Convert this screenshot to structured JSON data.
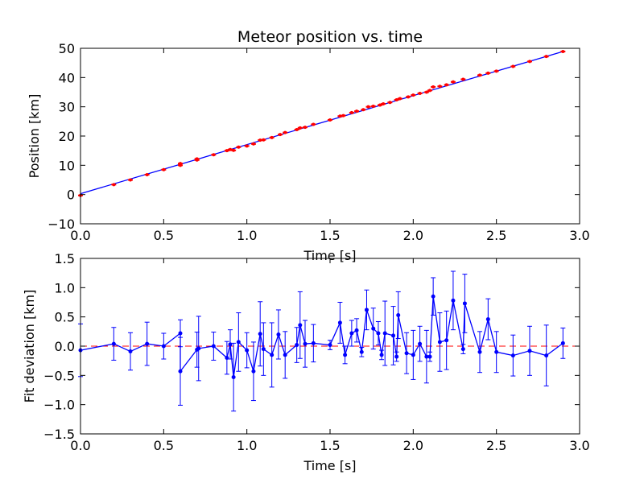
{
  "chart_data": [
    {
      "type": "scatter",
      "title": "Meteor position vs. time",
      "xlabel": "Time [s]",
      "ylabel": "Position [km]",
      "xlim": [
        0,
        3
      ],
      "ylim": [
        -10,
        50
      ],
      "xticks": [
        "0.0",
        "0.5",
        "1.0",
        "1.5",
        "2.0",
        "2.5",
        "3.0"
      ],
      "yticks": [
        "−10",
        "0",
        "10",
        "20",
        "30",
        "40",
        "50"
      ],
      "grid": false,
      "fit_line": {
        "x": [
          0,
          2.9
        ],
        "y": [
          0.3,
          48.9
        ],
        "color": "#0000ff"
      },
      "point_color": "#ff0000",
      "points": [
        {
          "x": 0.0,
          "y": -0.3
        },
        {
          "x": 0.2,
          "y": 3.4
        },
        {
          "x": 0.3,
          "y": 5.0
        },
        {
          "x": 0.4,
          "y": 6.8
        },
        {
          "x": 0.5,
          "y": 8.5
        },
        {
          "x": 0.6,
          "y": 10.0
        },
        {
          "x": 0.6,
          "y": 10.6
        },
        {
          "x": 0.7,
          "y": 11.8
        },
        {
          "x": 0.7,
          "y": 12.2
        },
        {
          "x": 0.8,
          "y": 13.6
        },
        {
          "x": 0.88,
          "y": 15.0
        },
        {
          "x": 0.9,
          "y": 15.4
        },
        {
          "x": 0.92,
          "y": 15.1
        },
        {
          "x": 0.95,
          "y": 16.2
        },
        {
          "x": 1.0,
          "y": 16.6
        },
        {
          "x": 1.04,
          "y": 17.3
        },
        {
          "x": 1.08,
          "y": 18.6
        },
        {
          "x": 1.1,
          "y": 18.7
        },
        {
          "x": 1.15,
          "y": 19.5
        },
        {
          "x": 1.2,
          "y": 20.5
        },
        {
          "x": 1.23,
          "y": 21.2
        },
        {
          "x": 1.3,
          "y": 22.2
        },
        {
          "x": 1.32,
          "y": 22.8
        },
        {
          "x": 1.35,
          "y": 23.0
        },
        {
          "x": 1.4,
          "y": 24.0
        },
        {
          "x": 1.5,
          "y": 25.5
        },
        {
          "x": 1.56,
          "y": 26.8
        },
        {
          "x": 1.58,
          "y": 27.0
        },
        {
          "x": 1.63,
          "y": 28.0
        },
        {
          "x": 1.66,
          "y": 28.5
        },
        {
          "x": 1.7,
          "y": 29.0
        },
        {
          "x": 1.73,
          "y": 30.0
        },
        {
          "x": 1.76,
          "y": 30.2
        },
        {
          "x": 1.8,
          "y": 30.6
        },
        {
          "x": 1.82,
          "y": 31.0
        },
        {
          "x": 1.86,
          "y": 31.5
        },
        {
          "x": 1.9,
          "y": 32.4
        },
        {
          "x": 1.92,
          "y": 32.8
        },
        {
          "x": 1.97,
          "y": 33.4
        },
        {
          "x": 2.0,
          "y": 34.0
        },
        {
          "x": 2.04,
          "y": 34.6
        },
        {
          "x": 2.08,
          "y": 35.0
        },
        {
          "x": 2.1,
          "y": 35.6
        },
        {
          "x": 2.12,
          "y": 36.8
        },
        {
          "x": 2.16,
          "y": 37.0
        },
        {
          "x": 2.2,
          "y": 37.5
        },
        {
          "x": 2.24,
          "y": 38.5
        },
        {
          "x": 2.3,
          "y": 39.4
        },
        {
          "x": 2.4,
          "y": 40.8
        },
        {
          "x": 2.45,
          "y": 41.5
        },
        {
          "x": 2.5,
          "y": 42.2
        },
        {
          "x": 2.6,
          "y": 43.8
        },
        {
          "x": 2.7,
          "y": 45.5
        },
        {
          "x": 2.8,
          "y": 47.2
        },
        {
          "x": 2.9,
          "y": 48.9
        }
      ]
    },
    {
      "type": "line",
      "title": "",
      "xlabel": "Time [s]",
      "ylabel": "Fit deviation [km]",
      "xlim": [
        0,
        3
      ],
      "ylim": [
        -1.5,
        1.5
      ],
      "xticks": [
        "0.0",
        "0.5",
        "1.0",
        "1.5",
        "2.0",
        "2.5",
        "3.0"
      ],
      "yticks": [
        "−1.5",
        "−1.0",
        "−0.5",
        "0.0",
        "0.5",
        "1.0",
        "1.5"
      ],
      "grid": false,
      "zero_line_color": "#ff0000",
      "series_color": "#0000ff",
      "points": [
        {
          "x": 0.0,
          "y": -0.07,
          "err": 0.45
        },
        {
          "x": 0.2,
          "y": 0.04,
          "err": 0.28
        },
        {
          "x": 0.3,
          "y": -0.09,
          "err": 0.32
        },
        {
          "x": 0.4,
          "y": 0.04,
          "err": 0.37
        },
        {
          "x": 0.5,
          "y": 0.0,
          "err": 0.22
        },
        {
          "x": 0.6,
          "y": 0.22,
          "err": 0.23
        },
        {
          "x": 0.6,
          "y": -0.43,
          "err": 0.58
        },
        {
          "x": 0.7,
          "y": -0.06,
          "err": 0.3
        },
        {
          "x": 0.71,
          "y": -0.04,
          "err": 0.55
        },
        {
          "x": 0.8,
          "y": 0.0,
          "err": 0.24
        },
        {
          "x": 0.88,
          "y": -0.2,
          "err": 0.28
        },
        {
          "x": 0.9,
          "y": 0.03,
          "err": 0.25
        },
        {
          "x": 0.92,
          "y": -0.53,
          "err": 0.58
        },
        {
          "x": 0.95,
          "y": 0.07,
          "err": 0.5
        },
        {
          "x": 1.0,
          "y": -0.07,
          "err": 0.3
        },
        {
          "x": 1.04,
          "y": -0.43,
          "err": 0.5
        },
        {
          "x": 1.08,
          "y": 0.21,
          "err": 0.55
        },
        {
          "x": 1.1,
          "y": -0.05,
          "err": 0.45
        },
        {
          "x": 1.15,
          "y": -0.15,
          "err": 0.55
        },
        {
          "x": 1.19,
          "y": 0.2,
          "err": 0.42
        },
        {
          "x": 1.23,
          "y": -0.15,
          "err": 0.4
        },
        {
          "x": 1.3,
          "y": 0.02,
          "err": 0.3
        },
        {
          "x": 1.32,
          "y": 0.36,
          "err": 0.57
        },
        {
          "x": 1.35,
          "y": 0.04,
          "err": 0.4
        },
        {
          "x": 1.4,
          "y": 0.05,
          "err": 0.32
        },
        {
          "x": 1.5,
          "y": 0.02,
          "err": 0.08
        },
        {
          "x": 1.56,
          "y": 0.4,
          "err": 0.35
        },
        {
          "x": 1.59,
          "y": -0.15,
          "err": 0.15
        },
        {
          "x": 1.63,
          "y": 0.22,
          "err": 0.22
        },
        {
          "x": 1.66,
          "y": 0.27,
          "err": 0.2
        },
        {
          "x": 1.69,
          "y": -0.1,
          "err": 0.08
        },
        {
          "x": 1.72,
          "y": 0.62,
          "err": 0.34
        },
        {
          "x": 1.76,
          "y": 0.3,
          "err": 0.35
        },
        {
          "x": 1.79,
          "y": 0.22,
          "err": 0.2
        },
        {
          "x": 1.81,
          "y": -0.15,
          "err": 0.08
        },
        {
          "x": 1.83,
          "y": 0.22,
          "err": 0.55
        },
        {
          "x": 1.88,
          "y": 0.18,
          "err": 0.5
        },
        {
          "x": 1.9,
          "y": -0.18,
          "err": 0.08
        },
        {
          "x": 1.91,
          "y": 0.53,
          "err": 0.4
        },
        {
          "x": 1.96,
          "y": -0.12,
          "err": 0.35
        },
        {
          "x": 2.0,
          "y": -0.15,
          "err": 0.42
        },
        {
          "x": 2.04,
          "y": 0.04,
          "err": 0.3
        },
        {
          "x": 2.08,
          "y": -0.18,
          "err": 0.45
        },
        {
          "x": 2.1,
          "y": -0.18,
          "err": 0.08
        },
        {
          "x": 2.12,
          "y": 0.85,
          "err": 0.32
        },
        {
          "x": 2.16,
          "y": 0.07,
          "err": 0.5
        },
        {
          "x": 2.2,
          "y": 0.1,
          "err": 0.5
        },
        {
          "x": 2.24,
          "y": 0.78,
          "err": 0.5
        },
        {
          "x": 2.3,
          "y": -0.05,
          "err": 0.08
        },
        {
          "x": 2.31,
          "y": 0.73,
          "err": 0.5
        },
        {
          "x": 2.4,
          "y": -0.1,
          "err": 0.35
        },
        {
          "x": 2.45,
          "y": 0.46,
          "err": 0.35
        },
        {
          "x": 2.5,
          "y": -0.1,
          "err": 0.35
        },
        {
          "x": 2.6,
          "y": -0.16,
          "err": 0.35
        },
        {
          "x": 2.7,
          "y": -0.08,
          "err": 0.42
        },
        {
          "x": 2.8,
          "y": -0.16,
          "err": 0.52
        },
        {
          "x": 2.9,
          "y": 0.05,
          "err": 0.26
        }
      ]
    }
  ]
}
